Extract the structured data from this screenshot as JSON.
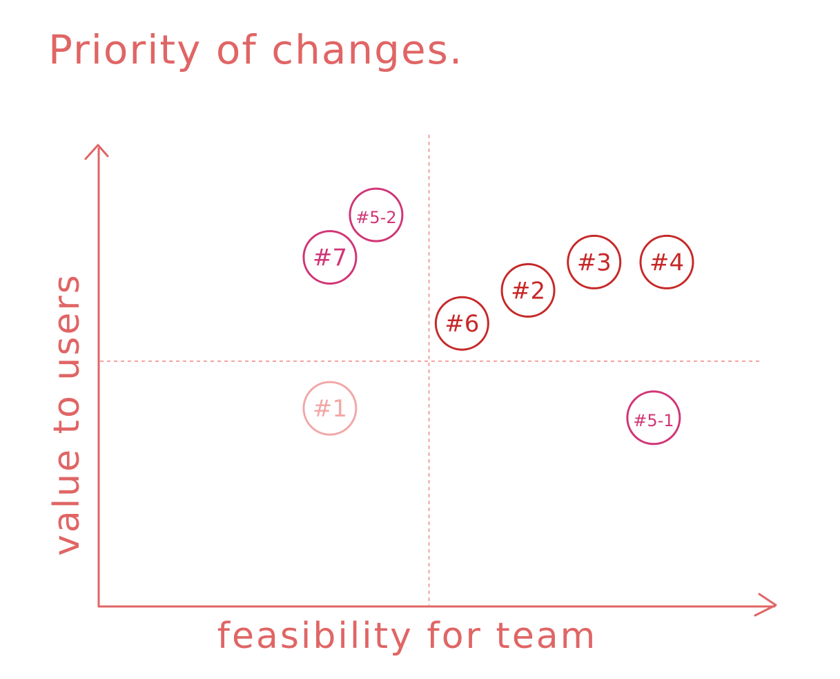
{
  "chart_data": {
    "type": "scatter",
    "title": "Priority of changes.",
    "xlabel": "feasibility for team",
    "ylabel": "value to users",
    "xlim": [
      0,
      100
    ],
    "ylim": [
      0,
      100
    ],
    "grid": false,
    "quadrant_dividers": {
      "x": 50,
      "y": 52
    },
    "points": [
      {
        "label": "#5-2",
        "x": 42,
        "y": 83,
        "color": "#d03575",
        "status": "planned"
      },
      {
        "label": "#7",
        "x": 35,
        "y": 74,
        "color": "#d03575",
        "status": "planned"
      },
      {
        "label": "#3",
        "x": 75,
        "y": 73,
        "color": "#c62828",
        "status": "high"
      },
      {
        "label": "#4",
        "x": 86,
        "y": 73,
        "color": "#c62828",
        "status": "high"
      },
      {
        "label": "#2",
        "x": 65,
        "y": 67,
        "color": "#c62828",
        "status": "high"
      },
      {
        "label": "#6",
        "x": 55,
        "y": 60,
        "color": "#c62828",
        "status": "high"
      },
      {
        "label": "#1",
        "x": 35,
        "y": 42,
        "color": "#f2a7a7",
        "status": "low"
      },
      {
        "label": "#5-1",
        "x": 84,
        "y": 40,
        "color": "#d03575",
        "status": "planned"
      }
    ],
    "colors": {
      "axis": "#e06565",
      "divider": "#f2a0a0",
      "title": "#e06565"
    }
  }
}
